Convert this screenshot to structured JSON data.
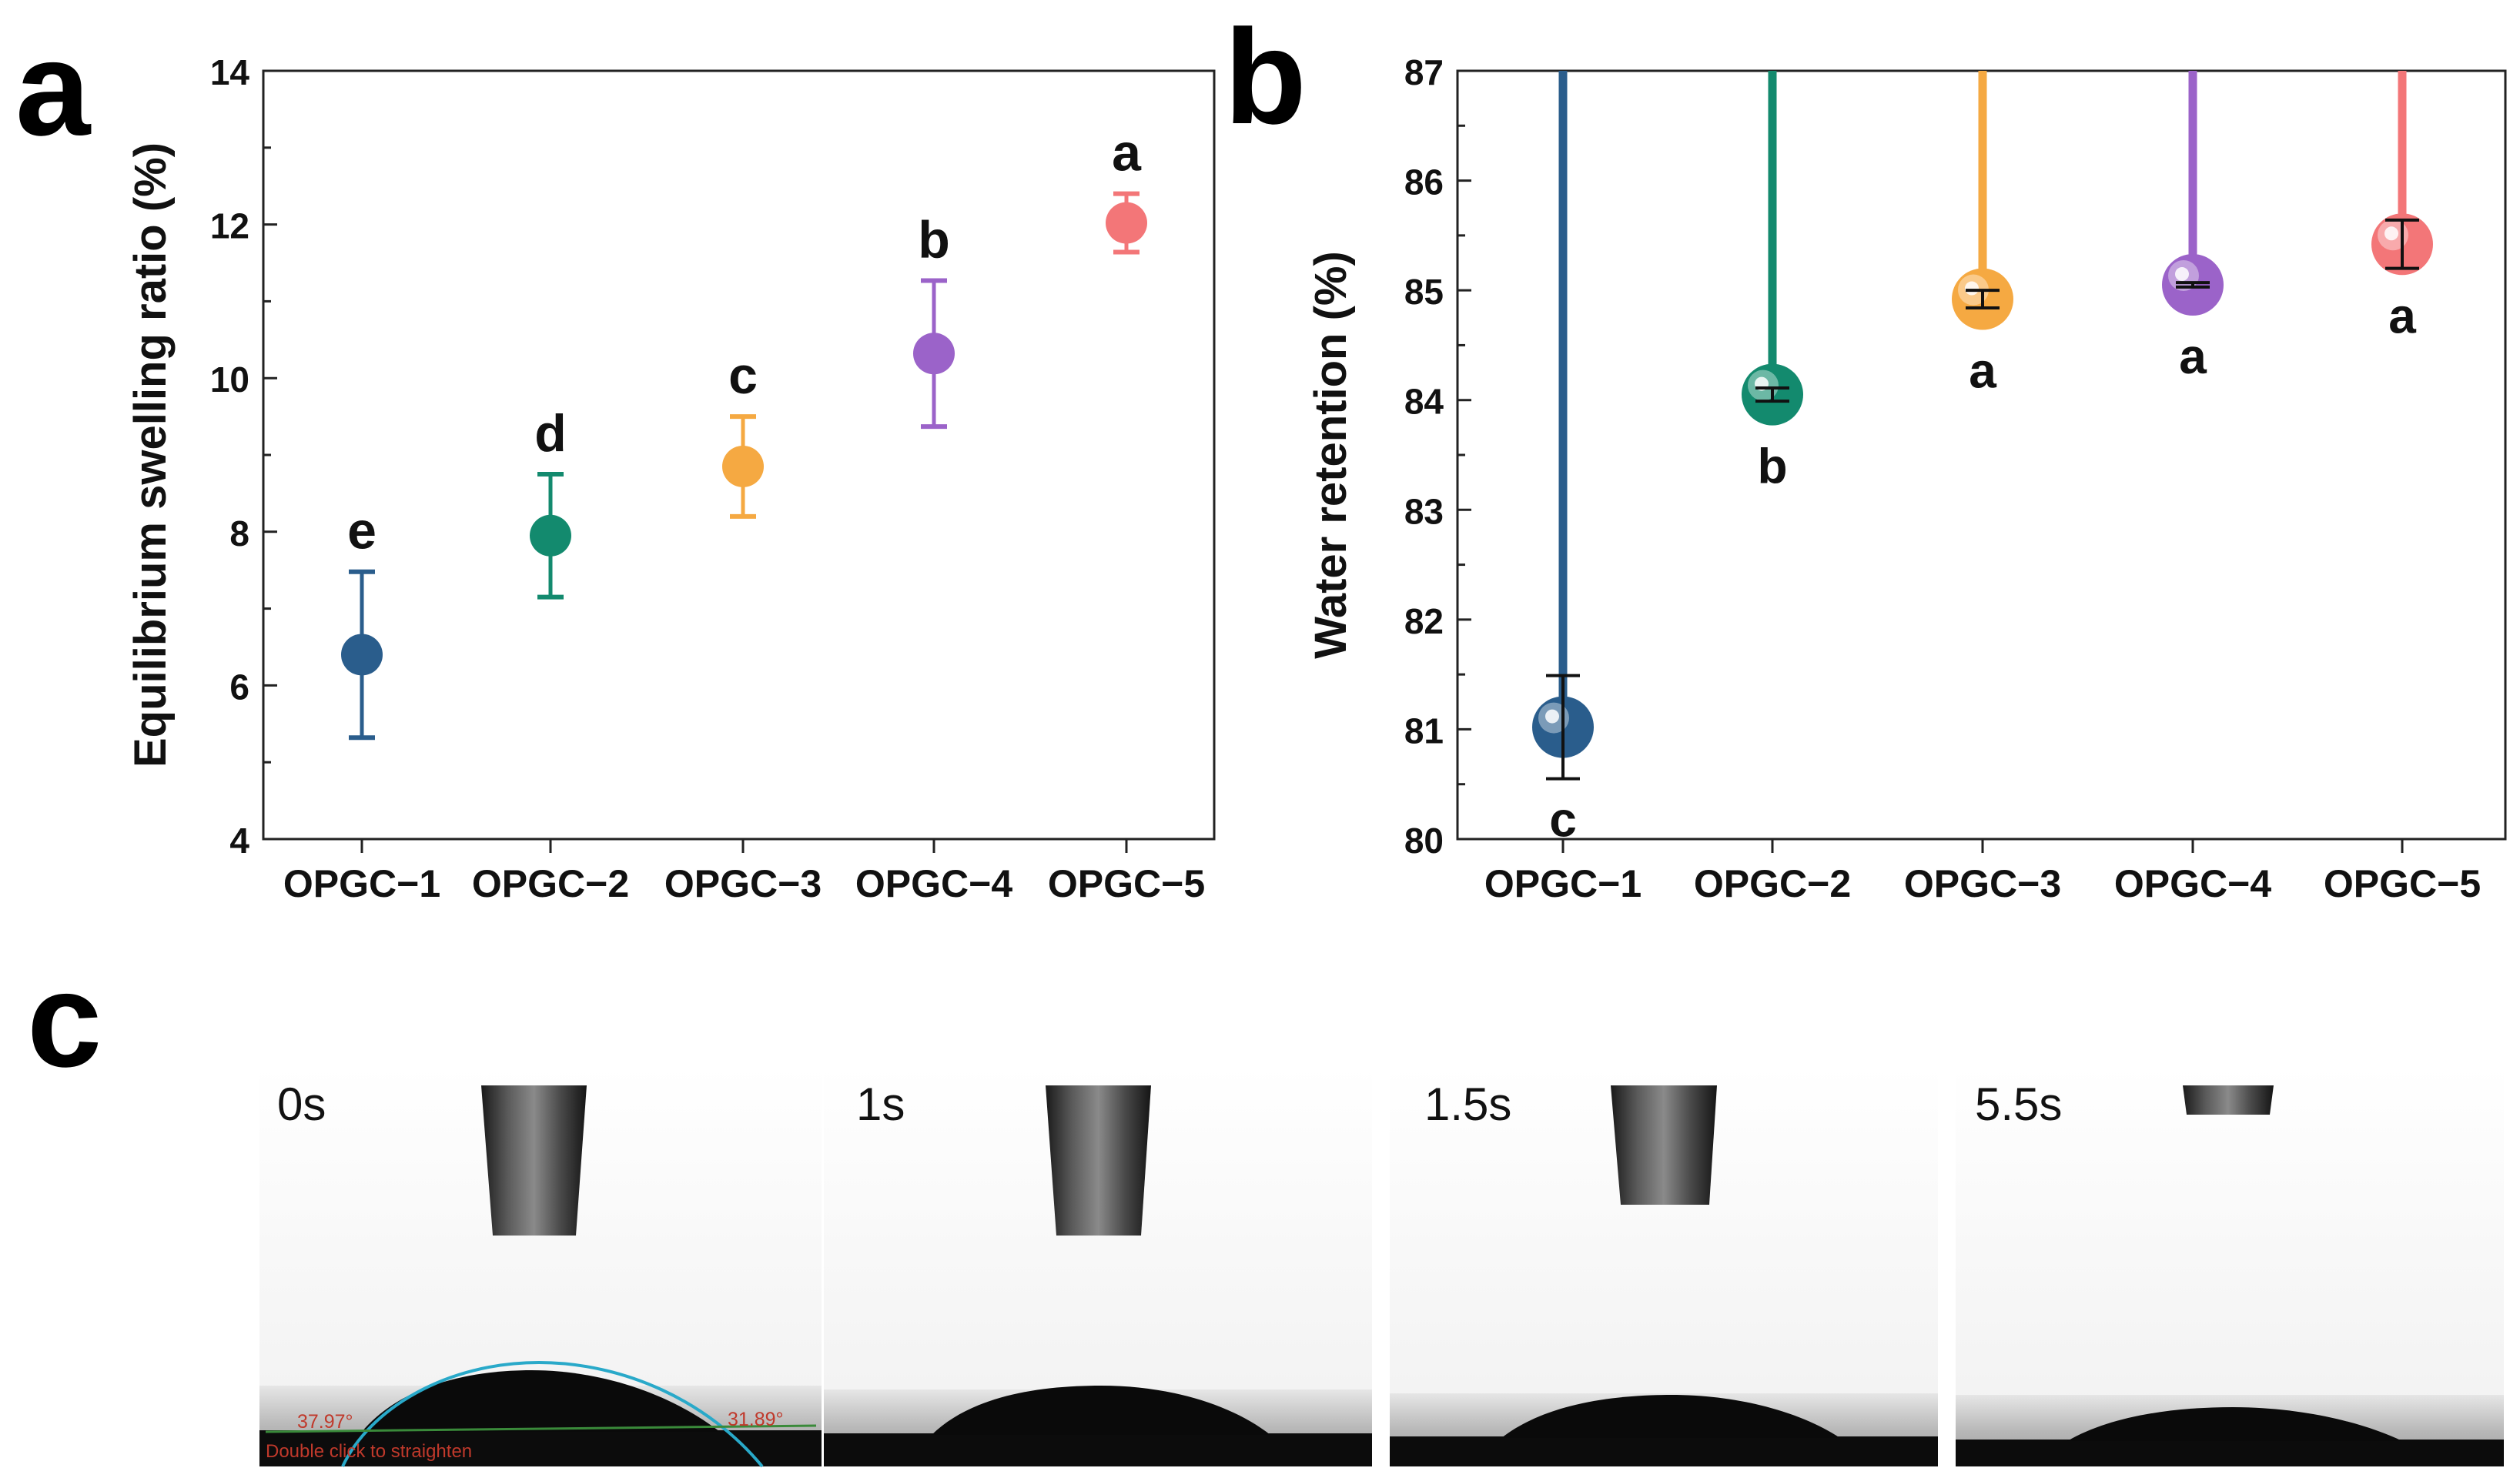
{
  "panels": {
    "a": "a",
    "b": "b",
    "c": "c"
  },
  "chart_data": [
    {
      "type": "scatter",
      "panel": "a",
      "ylabel": "Equilibrium swelling ratio (%)",
      "xlabel": "",
      "categories": [
        "OPGC−1",
        "OPGC−2",
        "OPGC−3",
        "OPGC−4",
        "OPGC−5"
      ],
      "values": [
        6.4,
        7.95,
        8.85,
        10.32,
        12.02
      ],
      "errors": [
        1.08,
        0.8,
        0.65,
        0.95,
        0.38
      ],
      "letters": [
        "e",
        "d",
        "c",
        "b",
        "a"
      ],
      "colors": [
        "#2a5d8c",
        "#138a6e",
        "#f5a942",
        "#9b63c9",
        "#f37678"
      ],
      "ylim": [
        4,
        14
      ],
      "yticks": [
        4,
        6,
        8,
        10,
        12,
        14
      ]
    },
    {
      "type": "lollipop",
      "panel": "b",
      "ylabel": "Water retention (%)",
      "xlabel": "",
      "categories": [
        "OPGC−1",
        "OPGC−2",
        "OPGC−3",
        "OPGC−4",
        "OPGC−5"
      ],
      "values": [
        81.02,
        84.05,
        84.92,
        85.05,
        85.42
      ],
      "errors": [
        0.47,
        0.06,
        0.08,
        0.02,
        0.22
      ],
      "letters": [
        "c",
        "b",
        "a",
        "a",
        "a"
      ],
      "colors": [
        "#2a5d8c",
        "#138a6e",
        "#f5a942",
        "#9b63c9",
        "#f37678"
      ],
      "ylim": [
        80,
        87
      ],
      "yticks": [
        80,
        81,
        82,
        83,
        84,
        85,
        86,
        87
      ]
    }
  ],
  "frames": [
    {
      "time": "0s",
      "left_angle": "37.97°",
      "right_angle": "31.89°",
      "hint": "Double click to straighten"
    },
    {
      "time": "1s"
    },
    {
      "time": "1.5s"
    },
    {
      "time": "5.5s"
    }
  ]
}
